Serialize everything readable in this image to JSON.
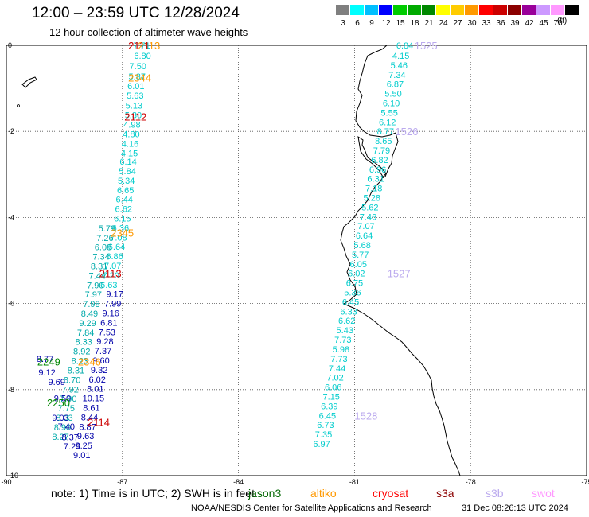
{
  "header": {
    "title": "12:00 – 23:59 UTC 12/28/2024",
    "subtitle": "12 hour collection of altimeter wave heights"
  },
  "legend": {
    "unit": "(ft)",
    "bins": [
      {
        "label": "3",
        "color": "#7f7f7f"
      },
      {
        "label": "6",
        "color": "#00ffff"
      },
      {
        "label": "9",
        "color": "#00bfff"
      },
      {
        "label": "12",
        "color": "#0000ff"
      },
      {
        "label": "15",
        "color": "#00cc00"
      },
      {
        "label": "18",
        "color": "#00aa00"
      },
      {
        "label": "21",
        "color": "#008800"
      },
      {
        "label": "24",
        "color": "#ffff00"
      },
      {
        "label": "27",
        "color": "#ffcc00"
      },
      {
        "label": "30",
        "color": "#ff9900"
      },
      {
        "label": "33",
        "color": "#ff0000"
      },
      {
        "label": "36",
        "color": "#cc0000"
      },
      {
        "label": "39",
        "color": "#8b0000"
      },
      {
        "label": "42",
        "color": "#990099"
      },
      {
        "label": "45",
        "color": "#cc99ff"
      },
      {
        "label": "70",
        "color": "#ff99ff"
      },
      {
        "label": "",
        "color": "#000000"
      }
    ]
  },
  "map": {
    "lon_range": [
      -90,
      -75
    ],
    "lat_range": [
      -10,
      0
    ],
    "x_ticks": [
      "-90",
      "-87",
      "-84",
      "-81",
      "-78",
      "-75"
    ],
    "y_ticks": [
      "0",
      "-2",
      "-4",
      "-6",
      "-8",
      "-10"
    ]
  },
  "tracks": [
    {
      "id": "trk1",
      "color": "#00cccc",
      "points": [
        {
          "lon": -86.5,
          "lat": 0.0,
          "v": "7.71"
        },
        {
          "lon": -86.48,
          "lat": -0.24,
          "v": "6.80"
        },
        {
          "lon": -86.6,
          "lat": -0.48,
          "v": "7.50"
        },
        {
          "lon": -86.62,
          "lat": -0.72,
          "v": "5.87"
        },
        {
          "lon": -86.65,
          "lat": -0.94,
          "v": "6.01"
        },
        {
          "lon": -86.67,
          "lat": -1.16,
          "v": "5.63"
        },
        {
          "lon": -86.7,
          "lat": -1.4,
          "v": "5.13"
        },
        {
          "lon": -86.72,
          "lat": -1.62,
          "v": "5.30"
        },
        {
          "lon": -86.75,
          "lat": -1.84,
          "v": "4.98"
        },
        {
          "lon": -86.77,
          "lat": -2.06,
          "v": "4.80"
        },
        {
          "lon": -86.8,
          "lat": -2.28,
          "v": "4.16"
        },
        {
          "lon": -86.82,
          "lat": -2.5,
          "v": "4.15"
        },
        {
          "lon": -86.85,
          "lat": -2.7,
          "v": "6.14"
        },
        {
          "lon": -86.87,
          "lat": -2.92,
          "v": "5.84"
        },
        {
          "lon": -86.9,
          "lat": -3.14,
          "v": "5.34"
        },
        {
          "lon": -86.92,
          "lat": -3.36,
          "v": "6.65"
        },
        {
          "lon": -86.95,
          "lat": -3.58,
          "v": "6.44"
        },
        {
          "lon": -86.97,
          "lat": -3.8,
          "v": "6.62"
        },
        {
          "lon": -87.0,
          "lat": -4.02,
          "v": "6.15"
        },
        {
          "lon": -87.05,
          "lat": -4.24,
          "v": "6.36"
        },
        {
          "lon": -87.1,
          "lat": -4.46,
          "v": "7.08"
        },
        {
          "lon": -87.15,
          "lat": -4.68,
          "v": "6.64"
        },
        {
          "lon": -87.2,
          "lat": -4.9,
          "v": "6.86"
        },
        {
          "lon": -87.25,
          "lat": -5.12,
          "v": "7.07"
        },
        {
          "lon": -87.3,
          "lat": -5.34,
          "v": "7.20"
        },
        {
          "lon": -87.35,
          "lat": -5.56,
          "v": "6.63"
        }
      ]
    },
    {
      "id": "trk2",
      "color": "#00cccc",
      "points": [
        {
          "lon": -79.7,
          "lat": 0.0,
          "v": "6.84"
        },
        {
          "lon": -79.8,
          "lat": -0.24,
          "v": "4.15"
        },
        {
          "lon": -79.85,
          "lat": -0.46,
          "v": "5.46"
        },
        {
          "lon": -79.9,
          "lat": -0.68,
          "v": "7.34"
        },
        {
          "lon": -79.95,
          "lat": -0.9,
          "v": "6.87"
        },
        {
          "lon": -80.0,
          "lat": -1.12,
          "v": "5.50"
        },
        {
          "lon": -80.05,
          "lat": -1.34,
          "v": "6.10"
        },
        {
          "lon": -80.1,
          "lat": -1.56,
          "v": "5.55"
        },
        {
          "lon": -80.15,
          "lat": -1.78,
          "v": "6.12"
        },
        {
          "lon": -80.2,
          "lat": -2.0,
          "v": "8.77"
        },
        {
          "lon": -80.25,
          "lat": -2.22,
          "v": "8.65"
        },
        {
          "lon": -80.3,
          "lat": -2.44,
          "v": "7.79"
        },
        {
          "lon": -80.35,
          "lat": -2.66,
          "v": "6.82"
        },
        {
          "lon": -80.4,
          "lat": -2.88,
          "v": "6.96"
        },
        {
          "lon": -80.45,
          "lat": -3.1,
          "v": "6.31"
        },
        {
          "lon": -80.5,
          "lat": -3.32,
          "v": "7.18"
        },
        {
          "lon": -80.55,
          "lat": -3.54,
          "v": "5.28"
        },
        {
          "lon": -80.6,
          "lat": -3.76,
          "v": "5.62"
        },
        {
          "lon": -80.65,
          "lat": -3.98,
          "v": "7.46"
        },
        {
          "lon": -80.7,
          "lat": -4.2,
          "v": "7.07"
        },
        {
          "lon": -80.75,
          "lat": -4.42,
          "v": "6.64"
        },
        {
          "lon": -80.8,
          "lat": -4.64,
          "v": "5.68"
        },
        {
          "lon": -80.85,
          "lat": -4.86,
          "v": "5.77"
        },
        {
          "lon": -80.9,
          "lat": -5.08,
          "v": "6.05"
        },
        {
          "lon": -80.95,
          "lat": -5.3,
          "v": "6.02"
        },
        {
          "lon": -81.0,
          "lat": -5.52,
          "v": "6.75"
        },
        {
          "lon": -81.05,
          "lat": -5.74,
          "v": "5.36"
        },
        {
          "lon": -81.1,
          "lat": -5.96,
          "v": "6.45"
        },
        {
          "lon": -81.15,
          "lat": -6.18,
          "v": "6.33"
        },
        {
          "lon": -81.2,
          "lat": -6.4,
          "v": "6.62"
        },
        {
          "lon": -81.25,
          "lat": -6.62,
          "v": "5.43"
        },
        {
          "lon": -81.3,
          "lat": -6.84,
          "v": "7.73"
        },
        {
          "lon": -81.35,
          "lat": -7.06,
          "v": "5.98"
        },
        {
          "lon": -81.4,
          "lat": -7.28,
          "v": "7.73"
        },
        {
          "lon": -81.45,
          "lat": -7.5,
          "v": "7.44"
        },
        {
          "lon": -81.5,
          "lat": -7.72,
          "v": "7.02"
        },
        {
          "lon": -81.55,
          "lat": -7.94,
          "v": "6.06"
        },
        {
          "lon": -81.6,
          "lat": -8.16,
          "v": "7.15"
        },
        {
          "lon": -81.65,
          "lat": -8.38,
          "v": "6.39"
        },
        {
          "lon": -81.7,
          "lat": -8.6,
          "v": "6.45"
        },
        {
          "lon": -81.75,
          "lat": -8.82,
          "v": "6.73"
        },
        {
          "lon": -81.8,
          "lat": -9.04,
          "v": "7.35"
        },
        {
          "lon": -81.85,
          "lat": -9.26,
          "v": "6.97"
        }
      ]
    },
    {
      "id": "trk3",
      "color": "#00aaaa",
      "points": [
        {
          "lon": -87.4,
          "lat": -4.25,
          "v": "5.79"
        },
        {
          "lon": -87.45,
          "lat": -4.47,
          "v": "7.26"
        },
        {
          "lon": -87.5,
          "lat": -4.69,
          "v": "6.08"
        },
        {
          "lon": -87.55,
          "lat": -4.91,
          "v": "7.34"
        },
        {
          "lon": -87.6,
          "lat": -5.13,
          "v": "8.31"
        },
        {
          "lon": -87.65,
          "lat": -5.35,
          "v": "7.44"
        },
        {
          "lon": -87.7,
          "lat": -5.57,
          "v": "7.90"
        },
        {
          "lon": -87.75,
          "lat": -5.79,
          "v": "7.97"
        },
        {
          "lon": -87.8,
          "lat": -6.01,
          "v": "7.98"
        },
        {
          "lon": -87.85,
          "lat": -6.23,
          "v": "8.49"
        },
        {
          "lon": -87.9,
          "lat": -6.45,
          "v": "9.29"
        },
        {
          "lon": -87.95,
          "lat": -6.67,
          "v": "7.84"
        },
        {
          "lon": -88.0,
          "lat": -6.89,
          "v": "8.33"
        },
        {
          "lon": -88.05,
          "lat": -7.11,
          "v": "8.92"
        },
        {
          "lon": -88.1,
          "lat": -7.33,
          "v": "8.23"
        },
        {
          "lon": -88.2,
          "lat": -7.55,
          "v": "8.31"
        },
        {
          "lon": -88.3,
          "lat": -7.77,
          "v": "8.70"
        },
        {
          "lon": -88.35,
          "lat": -7.99,
          "v": "7.92"
        },
        {
          "lon": -88.4,
          "lat": -8.21,
          "v": "7.90"
        },
        {
          "lon": -88.45,
          "lat": -8.43,
          "v": "7.75"
        },
        {
          "lon": -88.5,
          "lat": -8.65,
          "v": "8.03"
        },
        {
          "lon": -88.55,
          "lat": -8.87,
          "v": "8.90"
        },
        {
          "lon": -88.6,
          "lat": -9.09,
          "v": "8.27"
        }
      ]
    },
    {
      "id": "trk4",
      "color": "#0000aa",
      "points": [
        {
          "lon": -87.2,
          "lat": -5.78,
          "v": "9.17"
        },
        {
          "lon": -87.25,
          "lat": -6.0,
          "v": "7.99"
        },
        {
          "lon": -87.3,
          "lat": -6.22,
          "v": "9.16"
        },
        {
          "lon": -87.35,
          "lat": -6.44,
          "v": "6.81"
        },
        {
          "lon": -87.4,
          "lat": -6.66,
          "v": "7.53"
        },
        {
          "lon": -87.45,
          "lat": -6.88,
          "v": "9.28"
        },
        {
          "lon": -87.5,
          "lat": -7.1,
          "v": "7.37"
        },
        {
          "lon": -87.55,
          "lat": -7.32,
          "v": "9.60"
        },
        {
          "lon": -87.6,
          "lat": -7.54,
          "v": "9.32"
        },
        {
          "lon": -87.65,
          "lat": -7.76,
          "v": "6.02"
        },
        {
          "lon": -87.7,
          "lat": -7.98,
          "v": "8.01"
        },
        {
          "lon": -87.75,
          "lat": -8.2,
          "v": "10.15"
        },
        {
          "lon": -87.8,
          "lat": -8.42,
          "v": "8.61"
        },
        {
          "lon": -87.85,
          "lat": -8.64,
          "v": "8.44"
        },
        {
          "lon": -87.9,
          "lat": -8.86,
          "v": "8.87"
        },
        {
          "lon": -87.95,
          "lat": -9.08,
          "v": "9.63"
        },
        {
          "lon": -88.0,
          "lat": -9.3,
          "v": "8.25"
        },
        {
          "lon": -88.05,
          "lat": -9.52,
          "v": "9.01"
        }
      ]
    },
    {
      "id": "trk5",
      "color": "#0000aa",
      "points": [
        {
          "lon": -88.95,
          "lat": -7.6,
          "v": "9.12"
        },
        {
          "lon": -88.7,
          "lat": -7.82,
          "v": "9.69"
        },
        {
          "lon": -88.55,
          "lat": -8.2,
          "v": "9.50"
        },
        {
          "lon": -88.6,
          "lat": -8.65,
          "v": "9.03"
        },
        {
          "lon": -88.45,
          "lat": -8.85,
          "v": "7.40"
        },
        {
          "lon": -88.35,
          "lat": -9.1,
          "v": "8.37"
        },
        {
          "lon": -88.3,
          "lat": -9.32,
          "v": "7.29"
        },
        {
          "lon": -89.0,
          "lat": -7.28,
          "v": "8.77"
        }
      ]
    }
  ],
  "pass_labels": [
    {
      "text": "2113",
      "color": "#ff9900",
      "lon": -86.6,
      "lat": 0.0
    },
    {
      "text": "2111",
      "color": "#cc0000",
      "lon": -86.85,
      "lat": 0.0
    },
    {
      "text": "2344",
      "color": "#ff9900",
      "lon": -86.85,
      "lat": -0.75
    },
    {
      "text": "2112",
      "color": "#cc0000",
      "lon": -86.95,
      "lat": -1.65
    },
    {
      "text": "2345",
      "color": "#ff9900",
      "lon": -87.3,
      "lat": -4.35
    },
    {
      "text": "2113",
      "color": "#cc0000",
      "lon": -87.6,
      "lat": -5.3
    },
    {
      "text": "2346",
      "color": "#ff9900",
      "lon": -88.15,
      "lat": -7.35
    },
    {
      "text": "2249",
      "color": "#008800",
      "lon": -89.2,
      "lat": -7.35
    },
    {
      "text": "2250",
      "color": "#008800",
      "lon": -88.95,
      "lat": -8.3
    },
    {
      "text": "2114",
      "color": "#cc0000",
      "lon": -87.9,
      "lat": -8.75
    },
    {
      "text": "1525",
      "color": "#bbaaee",
      "lon": -79.45,
      "lat": 0.0
    },
    {
      "text": "1526",
      "color": "#bbaaee",
      "lon": -79.95,
      "lat": -2.0
    },
    {
      "text": "1527",
      "color": "#bbaaee",
      "lon": -80.15,
      "lat": -5.3
    },
    {
      "text": "1528",
      "color": "#bbaaee",
      "lon": -81.0,
      "lat": -8.6
    }
  ],
  "footer": {
    "note": "note: 1) Time is in UTC; 2) SWH is in feet",
    "missions": [
      {
        "text": "jason3",
        "color": "#006600"
      },
      {
        "text": "altiko",
        "color": "#ff9900"
      },
      {
        "text": "cryosat",
        "color": "#ff0000"
      },
      {
        "text": "s3a",
        "color": "#8b0000"
      },
      {
        "text": "s3b",
        "color": "#bbaaee"
      },
      {
        "text": "swot",
        "color": "#ff99ff"
      }
    ],
    "credit": "NOAA/NESDIS Center for Satellite Applications and Research",
    "timestamp": "31 Dec 08:26:13 UTC 2024"
  }
}
